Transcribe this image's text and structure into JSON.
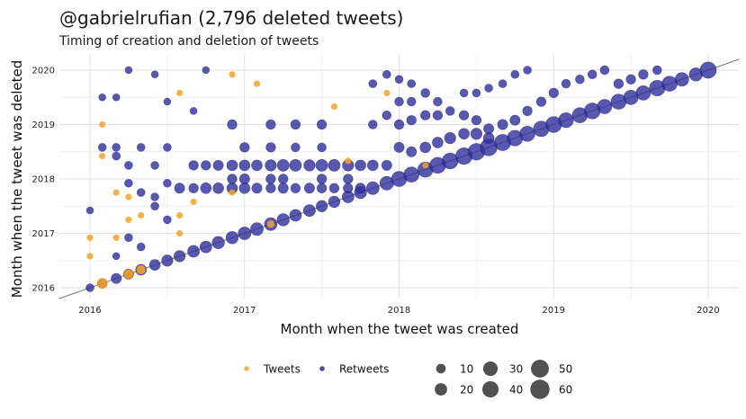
{
  "header": {
    "title": "@gabrielrufian (2,796 deleted tweets)",
    "subtitle": "Timing of creation and deletion of tweets"
  },
  "chart_data": {
    "type": "scatter",
    "title": "@gabrielrufian (2,796 deleted tweets)",
    "subtitle": "Timing of creation and deletion of tweets",
    "xlabel": "Month when the tweet was created",
    "ylabel": "Month when the tweet was deleted",
    "xlim": [
      2015.8,
      2020.2
    ],
    "ylim": [
      2015.85,
      2020.1
    ],
    "xticks": [
      "2016",
      "2017",
      "2018",
      "2019",
      "2020"
    ],
    "yticks": [
      "2016",
      "2017",
      "2018",
      "2019",
      "2020"
    ],
    "grid": true,
    "reference_line": "y = x",
    "colors": {
      "tweets": "#F5A623",
      "retweets": "#2E2E9A",
      "reference": "#777777"
    },
    "legend": {
      "placement": "bottom",
      "series": [
        "Tweets",
        "Retweets"
      ],
      "size_title": "",
      "sizes": [
        10,
        20,
        30,
        40,
        50,
        60
      ]
    },
    "series": [
      {
        "name": "Tweets",
        "points": [
          [
            2016.0,
            2016.58,
            2
          ],
          [
            2016.0,
            2016.92,
            2
          ],
          [
            2016.08,
            2016.08,
            12
          ],
          [
            2016.08,
            2019.0,
            2
          ],
          [
            2016.08,
            2018.42,
            2
          ],
          [
            2016.17,
            2017.75,
            2
          ],
          [
            2016.17,
            2016.92,
            2
          ],
          [
            2016.25,
            2016.25,
            10
          ],
          [
            2016.25,
            2017.67,
            2
          ],
          [
            2016.25,
            2017.25,
            2
          ],
          [
            2016.33,
            2016.33,
            8
          ],
          [
            2016.33,
            2017.33,
            2
          ],
          [
            2016.58,
            2017.33,
            2
          ],
          [
            2016.58,
            2017.0,
            2
          ],
          [
            2016.58,
            2019.58,
            2
          ],
          [
            2016.67,
            2017.58,
            2
          ],
          [
            2016.92,
            2019.92,
            2
          ],
          [
            2016.92,
            2017.75,
            2
          ],
          [
            2017.08,
            2019.75,
            2
          ],
          [
            2017.17,
            2017.17,
            4
          ],
          [
            2017.58,
            2019.33,
            2
          ],
          [
            2017.67,
            2018.33,
            2
          ],
          [
            2017.92,
            2019.58,
            2
          ],
          [
            2018.17,
            2018.25,
            2
          ]
        ]
      },
      {
        "name": "Retweets",
        "points": [
          [
            2016.0,
            2016.0,
            6
          ],
          [
            2016.08,
            2016.08,
            10
          ],
          [
            2016.17,
            2016.17,
            12
          ],
          [
            2016.25,
            2016.25,
            12
          ],
          [
            2016.33,
            2016.33,
            14
          ],
          [
            2016.42,
            2016.42,
            14
          ],
          [
            2016.5,
            2016.5,
            16
          ],
          [
            2016.58,
            2016.58,
            16
          ],
          [
            2016.67,
            2016.67,
            18
          ],
          [
            2016.75,
            2016.75,
            18
          ],
          [
            2016.83,
            2016.83,
            20
          ],
          [
            2016.92,
            2016.92,
            20
          ],
          [
            2017.0,
            2017.0,
            22
          ],
          [
            2017.08,
            2017.08,
            22
          ],
          [
            2017.17,
            2017.17,
            22
          ],
          [
            2017.25,
            2017.25,
            20
          ],
          [
            2017.33,
            2017.33,
            18
          ],
          [
            2017.42,
            2017.42,
            18
          ],
          [
            2017.5,
            2017.5,
            16
          ],
          [
            2017.58,
            2017.58,
            16
          ],
          [
            2017.67,
            2017.67,
            18
          ],
          [
            2017.75,
            2017.75,
            20
          ],
          [
            2017.83,
            2017.83,
            22
          ],
          [
            2017.92,
            2017.92,
            26
          ],
          [
            2018.0,
            2018.0,
            34
          ],
          [
            2018.08,
            2018.08,
            34
          ],
          [
            2018.17,
            2018.17,
            34
          ],
          [
            2018.25,
            2018.25,
            38
          ],
          [
            2018.33,
            2018.33,
            38
          ],
          [
            2018.42,
            2018.42,
            42
          ],
          [
            2018.5,
            2018.5,
            42
          ],
          [
            2018.58,
            2018.58,
            44
          ],
          [
            2018.67,
            2018.67,
            40
          ],
          [
            2018.75,
            2018.75,
            36
          ],
          [
            2018.83,
            2018.83,
            34
          ],
          [
            2018.92,
            2018.92,
            36
          ],
          [
            2019.0,
            2019.0,
            38
          ],
          [
            2019.08,
            2019.08,
            32
          ],
          [
            2019.17,
            2019.17,
            34
          ],
          [
            2019.25,
            2019.25,
            38
          ],
          [
            2019.33,
            2019.33,
            30
          ],
          [
            2019.42,
            2019.42,
            34
          ],
          [
            2019.5,
            2019.5,
            30
          ],
          [
            2019.58,
            2019.58,
            30
          ],
          [
            2019.67,
            2019.67,
            36
          ],
          [
            2019.75,
            2019.75,
            34
          ],
          [
            2019.83,
            2019.83,
            26
          ],
          [
            2019.92,
            2019.92,
            24
          ],
          [
            2020.0,
            2020.0,
            40
          ],
          [
            2016.83,
            2017.83,
            14
          ],
          [
            2016.92,
            2017.83,
            14
          ],
          [
            2016.58,
            2017.83,
            12
          ],
          [
            2016.75,
            2017.83,
            14
          ],
          [
            2016.67,
            2017.83,
            10
          ],
          [
            2017.0,
            2017.83,
            14
          ],
          [
            2017.08,
            2017.83,
            12
          ],
          [
            2017.17,
            2017.83,
            10
          ],
          [
            2017.25,
            2017.83,
            12
          ],
          [
            2017.33,
            2017.83,
            10
          ],
          [
            2017.42,
            2017.83,
            12
          ],
          [
            2017.5,
            2017.83,
            10
          ],
          [
            2017.58,
            2017.83,
            10
          ],
          [
            2017.67,
            2017.83,
            10
          ],
          [
            2017.75,
            2017.83,
            12
          ],
          [
            2016.83,
            2018.25,
            12
          ],
          [
            2016.92,
            2018.25,
            14
          ],
          [
            2017.0,
            2018.25,
            14
          ],
          [
            2017.08,
            2018.25,
            14
          ],
          [
            2017.17,
            2018.25,
            16
          ],
          [
            2017.25,
            2018.25,
            18
          ],
          [
            2017.33,
            2018.25,
            18
          ],
          [
            2017.42,
            2018.25,
            16
          ],
          [
            2017.5,
            2018.25,
            18
          ],
          [
            2017.58,
            2018.25,
            18
          ],
          [
            2017.67,
            2018.25,
            16
          ],
          [
            2017.75,
            2018.25,
            14
          ],
          [
            2017.83,
            2018.25,
            14
          ],
          [
            2017.92,
            2018.25,
            12
          ],
          [
            2016.67,
            2018.25,
            10
          ],
          [
            2016.75,
            2018.25,
            10
          ],
          [
            2016.92,
            2018.0,
            10
          ],
          [
            2017.0,
            2018.0,
            12
          ],
          [
            2017.17,
            2018.0,
            10
          ],
          [
            2017.25,
            2018.0,
            10
          ],
          [
            2017.5,
            2018.0,
            10
          ],
          [
            2017.67,
            2018.0,
            10
          ],
          [
            2017.0,
            2018.58,
            10
          ],
          [
            2017.17,
            2018.58,
            10
          ],
          [
            2017.33,
            2018.58,
            8
          ],
          [
            2017.5,
            2018.58,
            8
          ],
          [
            2016.92,
            2019.0,
            10
          ],
          [
            2017.17,
            2019.0,
            10
          ],
          [
            2017.33,
            2019.0,
            10
          ],
          [
            2017.5,
            2019.0,
            10
          ],
          [
            2016.5,
            2018.58,
            6
          ],
          [
            2016.33,
            2018.58,
            6
          ],
          [
            2016.17,
            2018.58,
            6
          ],
          [
            2016.08,
            2018.58,
            6
          ],
          [
            2016.25,
            2017.92,
            6
          ],
          [
            2016.5,
            2017.92,
            6
          ],
          [
            2016.42,
            2018.25,
            6
          ],
          [
            2016.25,
            2018.25,
            6
          ],
          [
            2016.17,
            2018.42,
            6
          ],
          [
            2016.33,
            2017.75,
            6
          ],
          [
            2016.42,
            2017.5,
            6
          ],
          [
            2016.5,
            2017.25,
            6
          ],
          [
            2016.42,
            2017.67,
            6
          ],
          [
            2016.25,
            2016.92,
            6
          ],
          [
            2016.33,
            2016.75,
            6
          ],
          [
            2016.42,
            2019.92,
            4
          ],
          [
            2016.25,
            2020.0,
            4
          ],
          [
            2016.75,
            2020.0,
            4
          ],
          [
            2016.08,
            2019.5,
            4
          ],
          [
            2016.17,
            2019.5,
            4
          ],
          [
            2016.5,
            2019.42,
            4
          ],
          [
            2016.67,
            2019.25,
            4
          ],
          [
            2016.0,
            2017.42,
            4
          ],
          [
            2016.17,
            2016.58,
            4
          ],
          [
            2018.0,
            2019.83,
            6
          ],
          [
            2018.08,
            2019.75,
            6
          ],
          [
            2018.17,
            2019.58,
            8
          ],
          [
            2018.25,
            2019.42,
            8
          ],
          [
            2018.33,
            2019.25,
            8
          ],
          [
            2018.42,
            2019.17,
            10
          ],
          [
            2018.5,
            2019.08,
            10
          ],
          [
            2018.58,
            2018.92,
            12
          ],
          [
            2018.67,
            2019.0,
            12
          ],
          [
            2018.75,
            2019.08,
            12
          ],
          [
            2018.83,
            2019.25,
            10
          ],
          [
            2018.92,
            2019.42,
            10
          ],
          [
            2019.0,
            2019.58,
            10
          ],
          [
            2019.08,
            2019.75,
            8
          ],
          [
            2019.17,
            2019.83,
            8
          ],
          [
            2019.25,
            2019.92,
            8
          ],
          [
            2019.33,
            2020.0,
            8
          ],
          [
            2019.42,
            2019.75,
            10
          ],
          [
            2019.5,
            2019.83,
            10
          ],
          [
            2019.58,
            2019.92,
            10
          ],
          [
            2019.67,
            2020.0,
            8
          ],
          [
            2018.0,
            2018.58,
            12
          ],
          [
            2018.08,
            2018.5,
            12
          ],
          [
            2018.17,
            2018.58,
            14
          ],
          [
            2018.25,
            2018.67,
            14
          ],
          [
            2018.33,
            2018.75,
            16
          ],
          [
            2018.42,
            2018.83,
            14
          ],
          [
            2018.5,
            2018.83,
            16
          ],
          [
            2018.58,
            2018.75,
            14
          ],
          [
            2018.0,
            2019.0,
            10
          ],
          [
            2018.08,
            2019.08,
            10
          ],
          [
            2018.17,
            2019.17,
            10
          ],
          [
            2018.25,
            2019.17,
            10
          ],
          [
            2018.0,
            2019.42,
            8
          ],
          [
            2018.08,
            2019.42,
            8
          ],
          [
            2017.92,
            2019.17,
            8
          ],
          [
            2017.83,
            2019.0,
            8
          ],
          [
            2017.83,
            2019.75,
            6
          ],
          [
            2017.92,
            2019.92,
            6
          ],
          [
            2018.42,
            2019.58,
            6
          ],
          [
            2018.5,
            2019.58,
            6
          ],
          [
            2018.58,
            2019.67,
            6
          ],
          [
            2018.67,
            2019.75,
            6
          ],
          [
            2018.75,
            2019.92,
            6
          ],
          [
            2018.83,
            2020.0,
            6
          ]
        ]
      }
    ]
  }
}
